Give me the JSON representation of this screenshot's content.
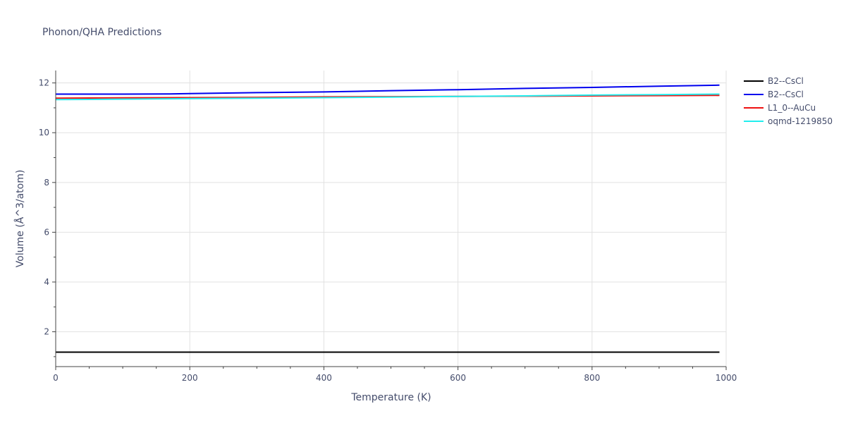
{
  "chart_data": {
    "type": "line",
    "title": "Phonon/QHA Predictions",
    "xlabel": "Temperature (K)",
    "ylabel": "Volume (Å^3/atom)",
    "xlim": [
      0,
      1000
    ],
    "ylim": [
      0.6,
      12.5
    ],
    "xticks": [
      0,
      200,
      400,
      600,
      800,
      1000
    ],
    "yticks": [
      2,
      4,
      6,
      8,
      10,
      12
    ],
    "x_minor_step": 50,
    "y_minor_step": 1,
    "grid": true,
    "legend_position": "right",
    "series": [
      {
        "name": "B2--CsCl",
        "color": "#000000",
        "x": [
          0,
          100,
          200,
          300,
          400,
          500,
          600,
          700,
          800,
          900,
          990
        ],
        "y": [
          1.18,
          1.18,
          1.18,
          1.18,
          1.18,
          1.18,
          1.18,
          1.18,
          1.18,
          1.18,
          1.18
        ]
      },
      {
        "name": "B2--CsCl",
        "color": "#0000ee",
        "x": [
          0,
          100,
          170,
          200,
          300,
          400,
          500,
          600,
          700,
          800,
          900,
          990
        ],
        "y": [
          11.55,
          11.55,
          11.56,
          11.57,
          11.61,
          11.64,
          11.69,
          11.73,
          11.78,
          11.82,
          11.87,
          11.91
        ]
      },
      {
        "name": "L1_0--AuCu",
        "color": "#ee1111",
        "x": [
          0,
          100,
          200,
          300,
          400,
          500,
          600,
          700,
          800,
          900,
          990
        ],
        "y": [
          11.39,
          11.4,
          11.41,
          11.42,
          11.44,
          11.45,
          11.46,
          11.47,
          11.48,
          11.49,
          11.5
        ]
      },
      {
        "name": "oqmd-1219850",
        "color": "#22eeee",
        "x": [
          0,
          100,
          200,
          300,
          400,
          500,
          600,
          700,
          800,
          900,
          990
        ],
        "y": [
          11.33,
          11.35,
          11.37,
          11.39,
          11.41,
          11.43,
          11.46,
          11.48,
          11.51,
          11.53,
          11.55
        ]
      }
    ]
  }
}
